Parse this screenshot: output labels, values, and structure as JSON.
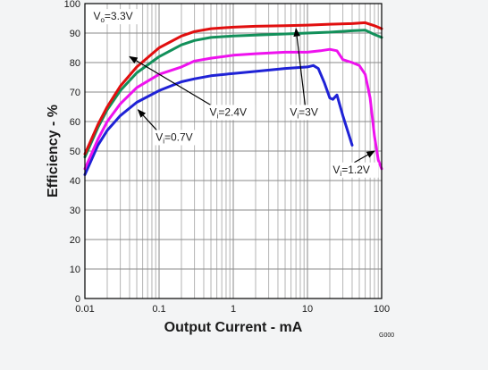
{
  "chart_data": {
    "type": "line",
    "title": "",
    "xlabel": "Output Current - mA",
    "ylabel": "Efficiency - %",
    "x_scale": "log",
    "xlim": [
      0.01,
      100
    ],
    "ylim": [
      0,
      100
    ],
    "x_ticks": [
      0.01,
      0.1,
      1,
      10,
      100
    ],
    "x_tick_labels": [
      "0.01",
      "0.1",
      "1",
      "10",
      "100"
    ],
    "y_ticks": [
      0,
      10,
      20,
      30,
      40,
      50,
      60,
      70,
      80,
      90,
      100
    ],
    "y_tick_labels": [
      "0",
      "10",
      "20",
      "30",
      "40",
      "50",
      "60",
      "70",
      "80",
      "90",
      "100"
    ],
    "grid": true,
    "legend": "none",
    "code_label": "G000",
    "series": [
      {
        "name": "Vi=0.7V",
        "color": "#1f22d6",
        "points": [
          [
            0.01,
            42
          ],
          [
            0.015,
            52
          ],
          [
            0.02,
            57
          ],
          [
            0.03,
            62
          ],
          [
            0.05,
            66.5
          ],
          [
            0.1,
            70.5
          ],
          [
            0.2,
            73.5
          ],
          [
            0.3,
            74.5
          ],
          [
            0.5,
            75.5
          ],
          [
            1,
            76.3
          ],
          [
            2,
            77
          ],
          [
            5,
            78
          ],
          [
            10,
            78.5
          ],
          [
            12,
            79
          ],
          [
            14,
            78
          ],
          [
            17,
            73
          ],
          [
            20,
            68
          ],
          [
            22,
            67.5
          ],
          [
            25,
            69
          ],
          [
            30,
            62
          ],
          [
            40,
            52
          ]
        ]
      },
      {
        "name": "Vi=1.2V",
        "color": "#ee12ee",
        "points": [
          [
            0.01,
            44
          ],
          [
            0.015,
            54
          ],
          [
            0.02,
            60
          ],
          [
            0.03,
            66
          ],
          [
            0.05,
            71.5
          ],
          [
            0.1,
            76
          ],
          [
            0.2,
            78.5
          ],
          [
            0.3,
            80.5
          ],
          [
            0.5,
            81.5
          ],
          [
            1,
            82.5
          ],
          [
            2,
            83
          ],
          [
            5,
            83.5
          ],
          [
            10,
            83.5
          ],
          [
            15,
            84
          ],
          [
            20,
            84.5
          ],
          [
            25,
            84
          ],
          [
            30,
            81
          ],
          [
            40,
            80
          ],
          [
            50,
            79
          ],
          [
            60,
            76
          ],
          [
            70,
            68
          ],
          [
            80,
            55
          ],
          [
            90,
            47
          ],
          [
            100,
            44
          ]
        ]
      },
      {
        "name": "Vi=2.4V",
        "color": "#12905a",
        "points": [
          [
            0.01,
            48
          ],
          [
            0.015,
            58
          ],
          [
            0.02,
            64
          ],
          [
            0.03,
            70.5
          ],
          [
            0.05,
            76.5
          ],
          [
            0.1,
            82
          ],
          [
            0.2,
            86
          ],
          [
            0.3,
            87.5
          ],
          [
            0.5,
            88.5
          ],
          [
            1,
            89
          ],
          [
            2,
            89.3
          ],
          [
            5,
            89.7
          ],
          [
            10,
            90
          ],
          [
            20,
            90.3
          ],
          [
            40,
            90.8
          ],
          [
            60,
            91
          ],
          [
            80,
            89.5
          ],
          [
            100,
            88.5
          ]
        ]
      },
      {
        "name": "Vi=3V",
        "color": "#e10f0f",
        "points": [
          [
            0.01,
            49
          ],
          [
            0.015,
            59
          ],
          [
            0.02,
            65
          ],
          [
            0.03,
            72
          ],
          [
            0.05,
            78.5
          ],
          [
            0.1,
            85
          ],
          [
            0.2,
            89
          ],
          [
            0.3,
            90.5
          ],
          [
            0.5,
            91.5
          ],
          [
            1,
            92
          ],
          [
            2,
            92.3
          ],
          [
            5,
            92.5
          ],
          [
            10,
            92.7
          ],
          [
            20,
            93
          ],
          [
            40,
            93.2
          ],
          [
            60,
            93.5
          ],
          [
            80,
            92.5
          ],
          [
            100,
            91.5
          ]
        ]
      }
    ],
    "annotations": [
      {
        "text": "Vo=3.3V",
        "main": "V",
        "sub": "o",
        "rest": "=3.3V",
        "x": 0.013,
        "y": 94.5
      },
      {
        "text": "Vi=2.4V",
        "main": "V",
        "sub": "i",
        "rest": "=2.4V",
        "x": 0.48,
        "y": 62,
        "arrow_to": [
          0.04,
          82
        ]
      },
      {
        "text": "Vi=3V",
        "main": "V",
        "sub": "i",
        "rest": "=3V",
        "x": 5.8,
        "y": 62,
        "arrow_to": [
          7,
          91.5
        ]
      },
      {
        "text": "Vi=0.7V",
        "main": "V",
        "sub": "i",
        "rest": "=0.7V",
        "x": 0.09,
        "y": 53.5,
        "arrow_to": [
          0.052,
          64
        ]
      },
      {
        "text": "Vi=1.2V",
        "main": "V",
        "sub": "i",
        "rest": "=1.2V",
        "x": 22,
        "y": 42.5,
        "arrow_to": [
          80,
          50
        ]
      }
    ]
  }
}
